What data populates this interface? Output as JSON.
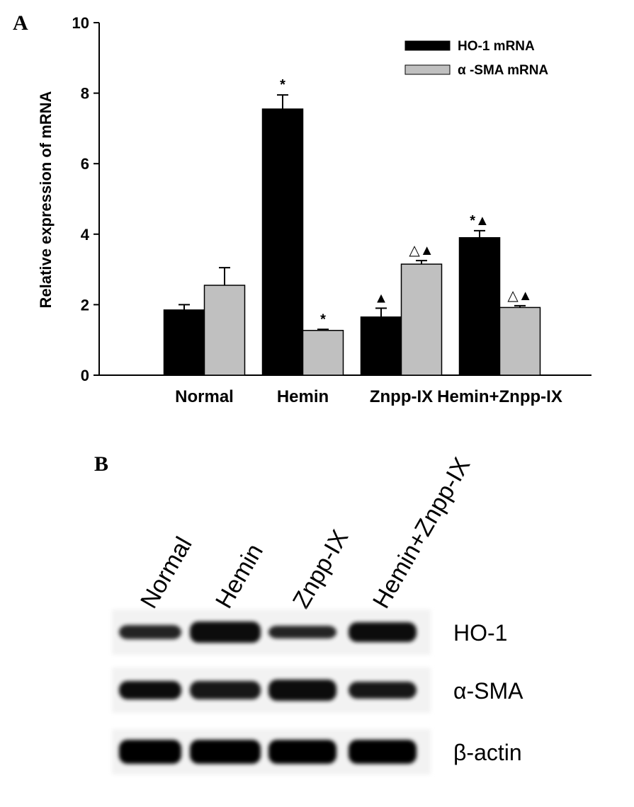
{
  "chart_data": {
    "type": "bar",
    "panel": "A",
    "ylabel": "Relative expression of mRNA",
    "categories": [
      "Normal",
      "Hemin",
      "Znpp-IX",
      "Hemin+Znpp-IX"
    ],
    "series": [
      {
        "name": "HO-1 mRNA",
        "color": "#000000",
        "values": [
          1.85,
          7.55,
          1.65,
          3.9
        ],
        "errors": [
          0.15,
          0.4,
          0.25,
          0.2
        ],
        "annotations": [
          null,
          "*",
          "▲",
          "*▲"
        ]
      },
      {
        "name": "α -SMA mRNA",
        "color": "#c0c0c0",
        "values": [
          2.55,
          1.27,
          3.15,
          1.92
        ],
        "errors": [
          0.5,
          0.03,
          0.1,
          0.05
        ],
        "annotations": [
          null,
          "*",
          "△▲",
          "△▲"
        ]
      }
    ],
    "ylim": [
      0,
      10
    ],
    "yticks": [
      0,
      2,
      4,
      6,
      8,
      10
    ],
    "grid": false,
    "legend": "top-right"
  },
  "blot": {
    "panel": "B",
    "lanes": [
      "Normal",
      "Hemin",
      "Znpp-IX",
      "Hemin+Znpp-IX"
    ],
    "rows": [
      "HO-1",
      "α-SMA",
      "β-actin"
    ]
  }
}
